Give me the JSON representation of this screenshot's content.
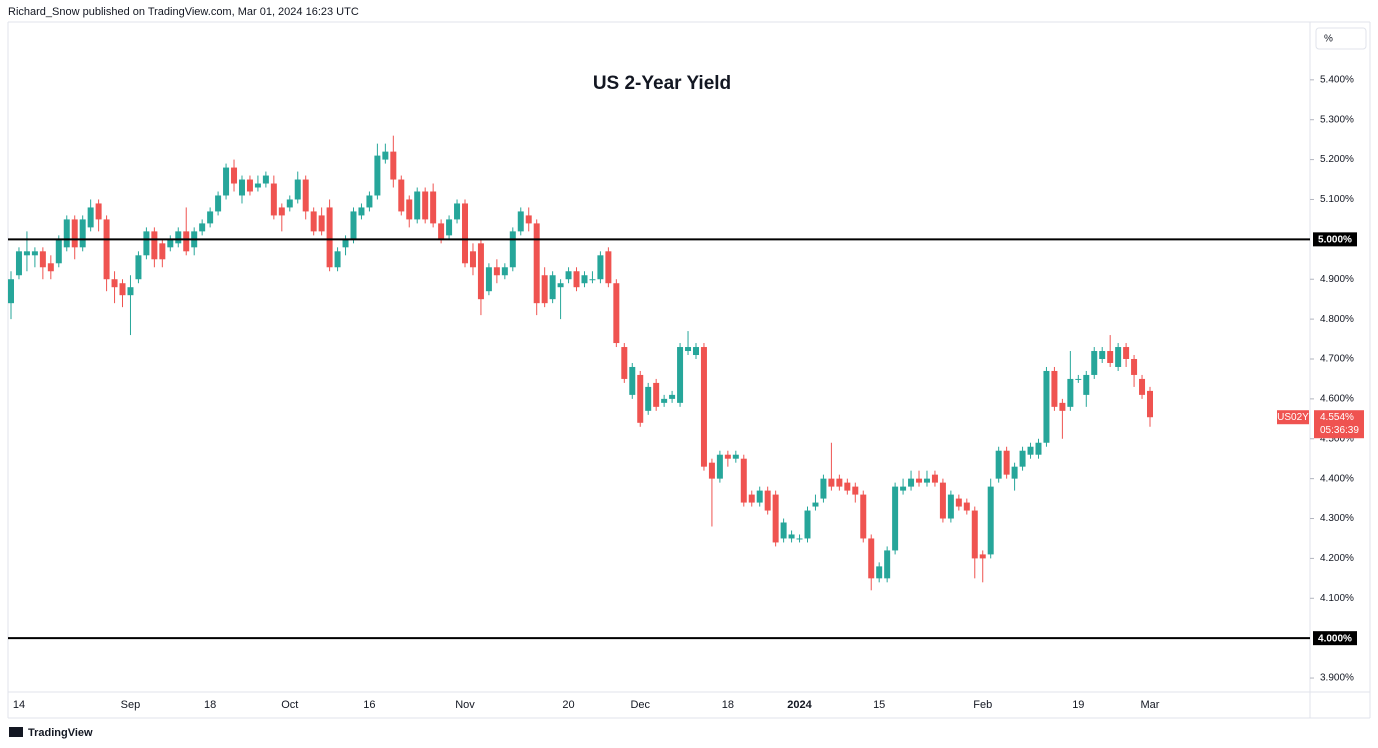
{
  "header": {
    "text": "Richard_Snow published on TradingView.com, Mar 01, 2024 16:23 UTC"
  },
  "footer": {
    "brand": "TradingView"
  },
  "chart_data": {
    "type": "candlestick",
    "title": "US 2-Year Yield",
    "symbol": "US02Y",
    "unit": "%",
    "countdown": "05:36:39",
    "up_color": "#26a69a",
    "down_color": "#ef5350",
    "categories": [
      null,
      "14",
      null,
      null,
      null,
      null,
      null,
      null,
      null,
      null,
      null,
      null,
      null,
      null,
      null,
      "Sep",
      null,
      null,
      null,
      null,
      null,
      null,
      null,
      null,
      null,
      "18",
      null,
      null,
      null,
      null,
      null,
      null,
      null,
      null,
      null,
      "Oct",
      null,
      null,
      null,
      null,
      null,
      null,
      null,
      null,
      null,
      "16",
      null,
      null,
      null,
      null,
      null,
      null,
      null,
      null,
      null,
      null,
      null,
      "Nov",
      null,
      null,
      null,
      null,
      null,
      null,
      null,
      null,
      null,
      null,
      null,
      null,
      "20",
      null,
      null,
      null,
      null,
      null,
      null,
      null,
      null,
      "Dec",
      null,
      null,
      null,
      null,
      null,
      null,
      null,
      null,
      null,
      null,
      "18",
      null,
      null,
      null,
      null,
      null,
      null,
      null,
      null,
      "2024",
      null,
      null,
      null,
      null,
      null,
      null,
      null,
      null,
      null,
      "15",
      null,
      null,
      null,
      null,
      null,
      null,
      null,
      null,
      null,
      null,
      null,
      null,
      "Feb",
      null,
      null,
      null,
      null,
      null,
      null,
      null,
      null,
      null,
      null,
      null,
      "19",
      null,
      null,
      null,
      null,
      null,
      null,
      null,
      null,
      "Mar"
    ],
    "open": [
      4.84,
      4.91,
      4.96,
      4.96,
      4.97,
      4.94,
      4.94,
      4.98,
      5.05,
      4.98,
      5.03,
      5.09,
      5.05,
      4.9,
      4.89,
      4.86,
      4.9,
      4.96,
      5.02,
      4.99,
      4.98,
      4.99,
      5.02,
      4.98,
      5.02,
      5.04,
      5.07,
      5.11,
      5.18,
      5.11,
      5.15,
      5.13,
      5.14,
      5.14,
      5.08,
      5.08,
      5.1,
      5.15,
      5.07,
      5.06,
      5.08,
      4.93,
      4.98,
      5.0,
      5.06,
      5.08,
      5.11,
      5.2,
      5.22,
      5.15,
      5.1,
      5.05,
      5.12,
      5.12,
      5.04,
      5.01,
      5.05,
      5.09,
      4.97,
      4.99,
      4.87,
      4.93,
      4.91,
      4.93,
      5.02,
      5.06,
      5.04,
      4.91,
      4.85,
      4.88,
      4.9,
      4.92,
      4.89,
      4.9,
      4.9,
      4.97,
      4.89,
      4.73,
      4.61,
      4.66,
      4.57,
      4.64,
      4.59,
      4.6,
      4.59,
      4.72,
      4.71,
      4.73,
      4.44,
      4.4,
      4.46,
      4.45,
      4.45,
      4.36,
      4.34,
      4.37,
      4.36,
      4.25,
      4.25,
      4.25,
      4.25,
      4.33,
      4.35,
      4.4,
      4.4,
      4.39,
      4.38,
      4.36,
      4.25,
      4.15,
      4.15,
      4.22,
      4.37,
      4.38,
      4.4,
      4.39,
      4.41,
      4.39,
      4.3,
      4.35,
      4.34,
      4.32,
      4.21,
      4.21,
      4.4,
      4.47,
      4.4,
      4.43,
      4.46,
      4.46,
      4.49,
      4.67,
      4.59,
      4.58,
      4.65,
      4.61,
      4.66,
      4.7,
      4.72,
      4.68,
      4.73,
      4.7,
      4.65,
      4.62
    ],
    "high": [
      4.92,
      4.98,
      5.02,
      4.98,
      4.98,
      4.96,
      5.01,
      5.06,
      5.06,
      5.06,
      5.1,
      5.1,
      5.06,
      4.92,
      4.9,
      4.91,
      4.97,
      5.03,
      5.03,
      5.0,
      5.01,
      5.03,
      5.08,
      5.03,
      5.05,
      5.08,
      5.12,
      5.19,
      5.2,
      5.16,
      5.16,
      5.16,
      5.17,
      5.16,
      5.09,
      5.11,
      5.17,
      5.16,
      5.08,
      5.08,
      5.1,
      4.98,
      5.01,
      5.08,
      5.09,
      5.12,
      5.24,
      5.24,
      5.26,
      5.16,
      5.11,
      5.13,
      5.13,
      5.14,
      5.05,
      5.06,
      5.1,
      5.1,
      4.99,
      5.0,
      4.94,
      4.95,
      4.94,
      5.03,
      5.08,
      5.08,
      5.05,
      4.93,
      4.92,
      4.9,
      4.93,
      4.93,
      4.92,
      4.92,
      4.97,
      4.98,
      4.9,
      4.74,
      4.69,
      4.67,
      4.64,
      4.65,
      4.61,
      4.62,
      4.74,
      4.77,
      4.74,
      4.74,
      4.45,
      4.47,
      4.47,
      4.47,
      4.46,
      4.37,
      4.38,
      4.38,
      4.37,
      4.3,
      4.27,
      4.26,
      4.33,
      4.36,
      4.41,
      4.49,
      4.41,
      4.4,
      4.39,
      4.37,
      4.26,
      4.19,
      4.23,
      4.39,
      4.4,
      4.42,
      4.42,
      4.42,
      4.42,
      4.4,
      4.37,
      4.36,
      4.35,
      4.33,
      4.22,
      4.4,
      4.48,
      4.48,
      4.44,
      4.48,
      4.49,
      4.5,
      4.68,
      4.68,
      4.6,
      4.72,
      4.66,
      4.67,
      4.73,
      4.73,
      4.76,
      4.74,
      4.74,
      4.71,
      4.66,
      4.63
    ],
    "low": [
      4.8,
      4.9,
      4.92,
      4.93,
      4.9,
      4.9,
      4.93,
      4.97,
      4.95,
      4.97,
      5.02,
      5.02,
      4.87,
      4.84,
      4.83,
      4.76,
      4.89,
      4.95,
      4.93,
      4.93,
      4.97,
      4.98,
      4.96,
      4.96,
      5.01,
      5.03,
      5.06,
      5.1,
      5.12,
      5.09,
      5.11,
      5.12,
      5.13,
      5.05,
      5.02,
      5.07,
      5.09,
      5.05,
      5.01,
      5.01,
      4.92,
      4.92,
      4.96,
      4.99,
      5.05,
      5.07,
      5.1,
      5.19,
      5.13,
      5.06,
      5.03,
      5.04,
      5.04,
      5.03,
      4.99,
      5.0,
      5.04,
      4.93,
      4.91,
      4.81,
      4.86,
      4.89,
      4.9,
      4.92,
      5.01,
      5.02,
      4.81,
      4.83,
      4.84,
      4.8,
      4.89,
      4.87,
      4.88,
      4.89,
      4.89,
      4.88,
      4.73,
      4.64,
      4.6,
      4.53,
      4.56,
      4.57,
      4.58,
      4.59,
      4.58,
      4.71,
      4.7,
      4.42,
      4.28,
      4.39,
      4.43,
      4.44,
      4.33,
      4.33,
      4.33,
      4.31,
      4.23,
      4.24,
      4.24,
      4.24,
      4.24,
      4.32,
      4.34,
      4.37,
      4.37,
      4.36,
      4.34,
      4.24,
      4.12,
      4.14,
      4.14,
      4.21,
      4.36,
      4.37,
      4.38,
      4.38,
      4.38,
      4.29,
      4.29,
      4.32,
      4.31,
      4.15,
      4.14,
      4.2,
      4.39,
      4.4,
      4.37,
      4.42,
      4.45,
      4.45,
      4.48,
      4.57,
      4.5,
      4.57,
      4.64,
      4.58,
      4.65,
      4.69,
      4.68,
      4.67,
      4.68,
      4.63,
      4.6,
      4.53
    ],
    "close": [
      4.9,
      4.97,
      4.97,
      4.97,
      4.93,
      4.92,
      5.0,
      5.05,
      4.98,
      5.05,
      5.08,
      5.05,
      4.9,
      4.88,
      4.86,
      4.88,
      4.96,
      5.02,
      4.95,
      4.95,
      5.0,
      5.02,
      4.97,
      5.02,
      5.04,
      5.07,
      5.11,
      5.18,
      5.14,
      5.15,
      5.12,
      5.14,
      5.16,
      5.06,
      5.06,
      5.1,
      5.15,
      5.07,
      5.02,
      5.02,
      4.93,
      4.97,
      5.0,
      5.07,
      5.08,
      5.11,
      5.21,
      5.22,
      5.15,
      5.07,
      5.05,
      5.12,
      5.05,
      5.04,
      5.0,
      5.05,
      5.09,
      4.94,
      4.93,
      4.85,
      4.93,
      4.91,
      4.93,
      5.02,
      5.07,
      5.04,
      4.84,
      4.84,
      4.91,
      4.89,
      4.92,
      4.88,
      4.91,
      4.9,
      4.96,
      4.89,
      4.74,
      4.65,
      4.68,
      4.54,
      4.63,
      4.58,
      4.6,
      4.61,
      4.73,
      4.73,
      4.73,
      4.43,
      4.4,
      4.46,
      4.45,
      4.46,
      4.34,
      4.34,
      4.37,
      4.32,
      4.24,
      4.29,
      4.26,
      4.25,
      4.32,
      4.34,
      4.4,
      4.38,
      4.38,
      4.37,
      4.36,
      4.25,
      4.15,
      4.18,
      4.22,
      4.38,
      4.38,
      4.4,
      4.39,
      4.4,
      4.39,
      4.3,
      4.36,
      4.33,
      4.32,
      4.2,
      4.2,
      4.38,
      4.47,
      4.41,
      4.43,
      4.47,
      4.48,
      4.49,
      4.67,
      4.58,
      4.57,
      4.65,
      4.65,
      4.66,
      4.72,
      4.72,
      4.69,
      4.73,
      4.7,
      4.66,
      4.61,
      4.554
    ],
    "ylim": [
      3.865,
      5.545
    ],
    "yticks": [
      {
        "value": 5.4,
        "label": "5.400%"
      },
      {
        "value": 5.3,
        "label": "5.300%"
      },
      {
        "value": 5.2,
        "label": "5.200%"
      },
      {
        "value": 5.1,
        "label": "5.100%"
      },
      {
        "value": 4.9,
        "label": "4.900%"
      },
      {
        "value": 4.8,
        "label": "4.800%"
      },
      {
        "value": 4.7,
        "label": "4.700%"
      },
      {
        "value": 4.6,
        "label": "4.600%"
      },
      {
        "value": 4.5,
        "label": "4.500%"
      },
      {
        "value": 4.4,
        "label": "4.400%"
      },
      {
        "value": 4.3,
        "label": "4.300%"
      },
      {
        "value": 4.2,
        "label": "4.200%"
      },
      {
        "value": 4.1,
        "label": "4.100%"
      },
      {
        "value": 3.9,
        "label": "3.900%"
      }
    ],
    "hlines": [
      {
        "value": 5.0,
        "label": "5.000%"
      },
      {
        "value": 4.0,
        "label": "4.000%"
      }
    ],
    "last_price": {
      "value": 4.554,
      "label": "4.554%"
    },
    "grid": false
  }
}
